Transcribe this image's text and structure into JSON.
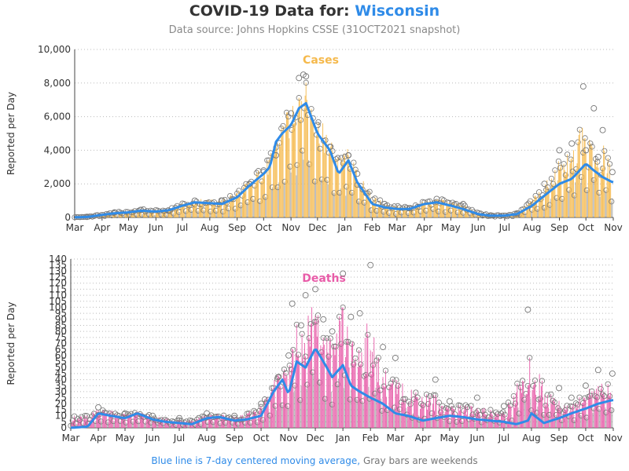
{
  "header": {
    "title_prefix": "COVID-19 Data for:",
    "title_state": "Wisconsin",
    "subtitle": "Data source: Johns Hopkins CSSE (31OCT2021 snapshot)"
  },
  "footer": {
    "blue_text": "Blue line is 7-day centered moving average,",
    "gray_text": "Gray bars are weekends"
  },
  "colors": {
    "cases_bar": "#f5b94c",
    "deaths_bar": "#e85ca8",
    "moving_avg": "#2f8be8",
    "weekend_bar": "#8c8c8c",
    "marker": "#777777"
  },
  "chart_data": [
    {
      "type": "bar",
      "panel": "cases",
      "label": "Cases",
      "ylabel": "Reported per Day",
      "ylim": [
        0,
        10000
      ],
      "yticks": [
        "0",
        "2,000",
        "4,000",
        "6,000",
        "8,000",
        "10,000"
      ],
      "ytick_values": [
        0,
        2000,
        4000,
        6000,
        8000,
        10000
      ],
      "xticks": [
        "Mar",
        "Apr",
        "May",
        "Jun",
        "Jul",
        "Aug",
        "Sep",
        "Oct",
        "Nov",
        "Dec",
        "Jan",
        "Feb",
        "Mar",
        "Apr",
        "May",
        "Jun",
        "Jul",
        "Aug",
        "Sep",
        "Oct",
        "Nov"
      ],
      "xrange": [
        "2020-03-01",
        "2021-11-01"
      ],
      "grid": "horizontal dotted",
      "series": [
        {
          "name": "7-day centered moving average",
          "dates": [
            "2020-03-01",
            "2020-03-15",
            "2020-04-01",
            "2020-04-15",
            "2020-05-01",
            "2020-05-15",
            "2020-06-01",
            "2020-06-15",
            "2020-07-01",
            "2020-07-15",
            "2020-08-01",
            "2020-08-15",
            "2020-09-01",
            "2020-09-15",
            "2020-10-01",
            "2020-10-08",
            "2020-10-15",
            "2020-10-22",
            "2020-11-01",
            "2020-11-10",
            "2020-11-18",
            "2020-12-01",
            "2020-12-15",
            "2020-12-25",
            "2021-01-05",
            "2021-01-15",
            "2021-02-01",
            "2021-02-15",
            "2021-03-01",
            "2021-03-15",
            "2021-04-01",
            "2021-04-15",
            "2021-05-01",
            "2021-05-15",
            "2021-06-01",
            "2021-06-15",
            "2021-07-01",
            "2021-07-15",
            "2021-08-01",
            "2021-08-15",
            "2021-09-01",
            "2021-09-15",
            "2021-10-01",
            "2021-10-10",
            "2021-10-20",
            "2021-10-31"
          ],
          "values": [
            5,
            30,
            150,
            250,
            300,
            400,
            350,
            420,
            700,
            900,
            850,
            800,
            1200,
            1900,
            2600,
            3000,
            4500,
            5000,
            5500,
            6500,
            6800,
            5000,
            4000,
            2600,
            3400,
            2100,
            800,
            600,
            500,
            500,
            800,
            900,
            700,
            500,
            200,
            100,
            110,
            200,
            700,
            1300,
            2000,
            2300,
            3200,
            2800,
            2400,
            2100
          ]
        },
        {
          "name": "daily reported",
          "dates": [
            "2020-03-15",
            "2020-04-15",
            "2020-05-15",
            "2020-06-15",
            "2020-07-15",
            "2020-08-15",
            "2020-09-15",
            "2020-10-01",
            "2020-10-15",
            "2020-11-01",
            "2020-11-10",
            "2020-11-15",
            "2020-11-18",
            "2020-12-01",
            "2020-12-15",
            "2021-01-05",
            "2021-01-15",
            "2021-02-15",
            "2021-03-15",
            "2021-04-15",
            "2021-05-15",
            "2021-06-15",
            "2021-07-15",
            "2021-08-15",
            "2021-09-01",
            "2021-09-15",
            "2021-09-28",
            "2021-10-01",
            "2021-10-10",
            "2021-10-15",
            "2021-10-20",
            "2021-10-31"
          ],
          "values": [
            40,
            300,
            450,
            400,
            1000,
            1000,
            2000,
            2800,
            3700,
            6200,
            8300,
            8500,
            8400,
            5500,
            4200,
            3700,
            2600,
            800,
            550,
            1100,
            800,
            120,
            250,
            2000,
            4000,
            4400,
            7800,
            4000,
            6500,
            3600,
            5200,
            2700
          ]
        }
      ]
    },
    {
      "type": "bar",
      "panel": "deaths",
      "label": "Deaths",
      "ylabel": "Reported per Day",
      "ylim": [
        0,
        140
      ],
      "yticks": [
        "0",
        "5",
        "10",
        "15",
        "20",
        "25",
        "30",
        "35",
        "40",
        "45",
        "50",
        "55",
        "60",
        "65",
        "70",
        "75",
        "80",
        "85",
        "90",
        "95",
        "100",
        "105",
        "110",
        "115",
        "120",
        "125",
        "130",
        "135",
        "140"
      ],
      "ytick_values": [
        0,
        5,
        10,
        15,
        20,
        25,
        30,
        35,
        40,
        45,
        50,
        55,
        60,
        65,
        70,
        75,
        80,
        85,
        90,
        95,
        100,
        105,
        110,
        115,
        120,
        125,
        130,
        135,
        140
      ],
      "xticks": [
        "Mar",
        "Apr",
        "May",
        "Jun",
        "Jul",
        "Aug",
        "Sep",
        "Oct",
        "Nov",
        "Dec",
        "Jan",
        "Feb",
        "Mar",
        "Apr",
        "May",
        "Jun",
        "Jul",
        "Aug",
        "Sep",
        "Oct",
        "Nov"
      ],
      "xrange": [
        "2020-03-01",
        "2021-11-01"
      ],
      "grid": "horizontal dotted",
      "series": [
        {
          "name": "7-day centered moving average",
          "dates": [
            "2020-03-01",
            "2020-03-20",
            "2020-04-01",
            "2020-04-15",
            "2020-05-01",
            "2020-05-15",
            "2020-06-01",
            "2020-06-15",
            "2020-07-01",
            "2020-07-15",
            "2020-08-01",
            "2020-08-15",
            "2020-09-01",
            "2020-09-15",
            "2020-10-01",
            "2020-10-15",
            "2020-10-25",
            "2020-11-01",
            "2020-11-10",
            "2020-11-20",
            "2020-12-01",
            "2020-12-10",
            "2020-12-20",
            "2021-01-01",
            "2021-01-10",
            "2021-01-20",
            "2021-02-01",
            "2021-02-15",
            "2021-03-01",
            "2021-03-15",
            "2021-04-01",
            "2021-04-15",
            "2021-05-01",
            "2021-05-15",
            "2021-06-01",
            "2021-06-15",
            "2021-07-01",
            "2021-07-15",
            "2021-07-28",
            "2021-08-01",
            "2021-08-15",
            "2021-09-01",
            "2021-09-15",
            "2021-10-01",
            "2021-10-15",
            "2021-10-31"
          ],
          "values": [
            0,
            1,
            12,
            10,
            8,
            12,
            7,
            5,
            4,
            3,
            8,
            9,
            6,
            7,
            10,
            30,
            40,
            28,
            55,
            50,
            66,
            55,
            42,
            52,
            35,
            30,
            25,
            20,
            12,
            10,
            6,
            8,
            10,
            9,
            7,
            6,
            5,
            3,
            6,
            12,
            4,
            8,
            12,
            16,
            20,
            23
          ]
        },
        {
          "name": "daily reported",
          "dates": [
            "2020-04-01",
            "2020-05-01",
            "2020-06-01",
            "2020-07-01",
            "2020-08-01",
            "2020-09-01",
            "2020-10-01",
            "2020-10-20",
            "2020-11-01",
            "2020-11-05",
            "2020-11-15",
            "2020-11-20",
            "2020-12-01",
            "2020-12-10",
            "2020-12-20",
            "2021-01-01",
            "2021-01-10",
            "2021-01-20",
            "2021-02-01",
            "2021-02-15",
            "2021-03-01",
            "2021-04-15",
            "2021-05-01",
            "2021-06-01",
            "2021-07-01",
            "2021-07-28",
            "2021-09-01",
            "2021-09-15",
            "2021-10-01",
            "2021-10-15",
            "2021-10-31"
          ],
          "values": [
            17,
            12,
            10,
            8,
            12,
            10,
            20,
            42,
            60,
            103,
            85,
            110,
            115,
            90,
            80,
            128,
            92,
            95,
            135,
            67,
            58,
            40,
            22,
            25,
            18,
            98,
            33,
            25,
            35,
            48,
            45
          ]
        }
      ]
    }
  ]
}
